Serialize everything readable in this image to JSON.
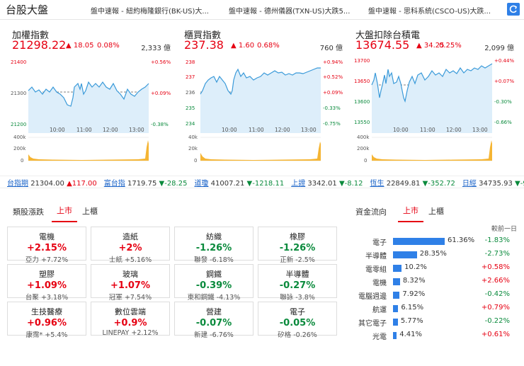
{
  "header": {
    "title": "台股大盤",
    "news": [
      "盤中速報 - 紐約梅隆銀行(BK-US)大...",
      "盤中速報 - 德州儀器(TXN-US)大跌5...",
      "盤中速報 - 思科系統(CSCO-US)大跌..."
    ]
  },
  "indices": [
    {
      "name": "加權指數",
      "price": "21298.22",
      "change": "▲ 18.05",
      "pct": "0.08%",
      "volume": "2,333 億",
      "yticks": [
        "21400",
        "21300",
        "21200"
      ],
      "pct_ticks": [
        "+0.56%",
        "+0.09%",
        "-0.38%"
      ],
      "vol_ticks": [
        "400k",
        "200k",
        "0"
      ],
      "times": [
        "10:00",
        "11:00",
        "12:00",
        "13:00"
      ]
    },
    {
      "name": "櫃買指數",
      "price": "237.38",
      "change": "▲ 1.60",
      "pct": "0.68%",
      "volume": "760 億",
      "yticks": [
        "238",
        "237",
        "236",
        "235",
        "234"
      ],
      "pct_ticks": [
        "+0.94%",
        "+0.52%",
        "+0.09%",
        "-0.33%",
        "-0.75%"
      ],
      "vol_ticks": [
        "40k",
        "20k",
        "0"
      ],
      "times": [
        "10:00",
        "11:00",
        "12:00",
        "13:00"
      ]
    },
    {
      "name": "大盤扣除台積電",
      "price": "13674.55",
      "change": "▲ 34.25",
      "pct": "0.25%",
      "volume": "2,099 億",
      "yticks": [
        "13700",
        "13650",
        "13600",
        "13550"
      ],
      "pct_ticks": [
        "+0.44%",
        "+0.07%",
        "-0.30%",
        "-0.66%"
      ],
      "vol_ticks": [
        "400k",
        "200k",
        "0"
      ],
      "times": [
        "10:00",
        "11:00",
        "12:00",
        "13:00"
      ]
    }
  ],
  "ticker": [
    {
      "label": "台指期",
      "value": "21304.00",
      "change": "▲117.00",
      "dir": "up"
    },
    {
      "label": "富台指",
      "value": "1719.75",
      "change": "▼-28.25",
      "dir": "down"
    },
    {
      "label": "道瓊",
      "value": "41007.21",
      "change": "▼-1218.11",
      "dir": "down"
    },
    {
      "label": "上證",
      "value": "3342.01",
      "change": "▼-8.12",
      "dir": "down"
    },
    {
      "label": "恆生",
      "value": "22849.81",
      "change": "▼-352.72",
      "dir": "down"
    },
    {
      "label": "日經",
      "value": "34735.93",
      "change": "▼-989.94",
      "dir": "down"
    }
  ],
  "sector": {
    "title": "類股漲跌",
    "tabs": [
      "上市",
      "上櫃"
    ],
    "cells": [
      {
        "name": "電機",
        "pct": "+2.15%",
        "dir": "up",
        "stock": "亞力",
        "stock_pct": "+7.72%"
      },
      {
        "name": "造紙",
        "pct": "+2%",
        "dir": "up",
        "stock": "士紙",
        "stock_pct": "+5.16%"
      },
      {
        "name": "紡織",
        "pct": "-1.26%",
        "dir": "down",
        "stock": "聯發",
        "stock_pct": "-6.18%"
      },
      {
        "name": "橡膠",
        "pct": "-1.26%",
        "dir": "down",
        "stock": "正新",
        "stock_pct": "-2.5%"
      },
      {
        "name": "塑膠",
        "pct": "+1.09%",
        "dir": "up",
        "stock": "台聚",
        "stock_pct": "+3.18%"
      },
      {
        "name": "玻璃",
        "pct": "+1.07%",
        "dir": "up",
        "stock": "冠軍",
        "stock_pct": "+7.54%"
      },
      {
        "name": "鋼鐵",
        "pct": "-0.39%",
        "dir": "down",
        "stock": "東和鋼鐵",
        "stock_pct": "-4.13%"
      },
      {
        "name": "半導體",
        "pct": "-0.27%",
        "dir": "down",
        "stock": "聯詠",
        "stock_pct": "-3.8%"
      },
      {
        "name": "生技醫療",
        "pct": "+0.96%",
        "dir": "up",
        "stock": "康霈*",
        "stock_pct": "+5.4%"
      },
      {
        "name": "數位雲端",
        "pct": "+0.9%",
        "dir": "up",
        "stock": "LINEPAY",
        "stock_pct": "+2.12%"
      },
      {
        "name": "營建",
        "pct": "-0.07%",
        "dir": "down",
        "stock": "新建",
        "stock_pct": "-6.76%"
      },
      {
        "name": "電子",
        "pct": "-0.05%",
        "dir": "down",
        "stock": "矽格",
        "stock_pct": "-0.26%"
      }
    ]
  },
  "flow": {
    "title": "資金流向",
    "tabs": [
      "上市",
      "上櫃"
    ],
    "prev_header": "較前一日",
    "rows": [
      {
        "name": "電子",
        "pct": "61.36%",
        "share": 61.36,
        "prev": "-1.83%",
        "dir": "down"
      },
      {
        "name": "半導體",
        "pct": "28.35%",
        "share": 28.35,
        "prev": "-2.73%",
        "dir": "down"
      },
      {
        "name": "電零組",
        "pct": "10.2%",
        "share": 10.2,
        "prev": "+0.58%",
        "dir": "up"
      },
      {
        "name": "電機",
        "pct": "8.32%",
        "share": 8.32,
        "prev": "+2.66%",
        "dir": "up"
      },
      {
        "name": "電腦週邊",
        "pct": "7.92%",
        "share": 7.92,
        "prev": "-0.42%",
        "dir": "down"
      },
      {
        "name": "航運",
        "pct": "6.15%",
        "share": 6.15,
        "prev": "+0.79%",
        "dir": "up"
      },
      {
        "name": "其它電子",
        "pct": "5.77%",
        "share": 5.77,
        "prev": "-0.22%",
        "dir": "down"
      },
      {
        "name": "光電",
        "pct": "4.41%",
        "share": 4.41,
        "prev": "+0.61%",
        "dir": "up"
      }
    ]
  }
}
